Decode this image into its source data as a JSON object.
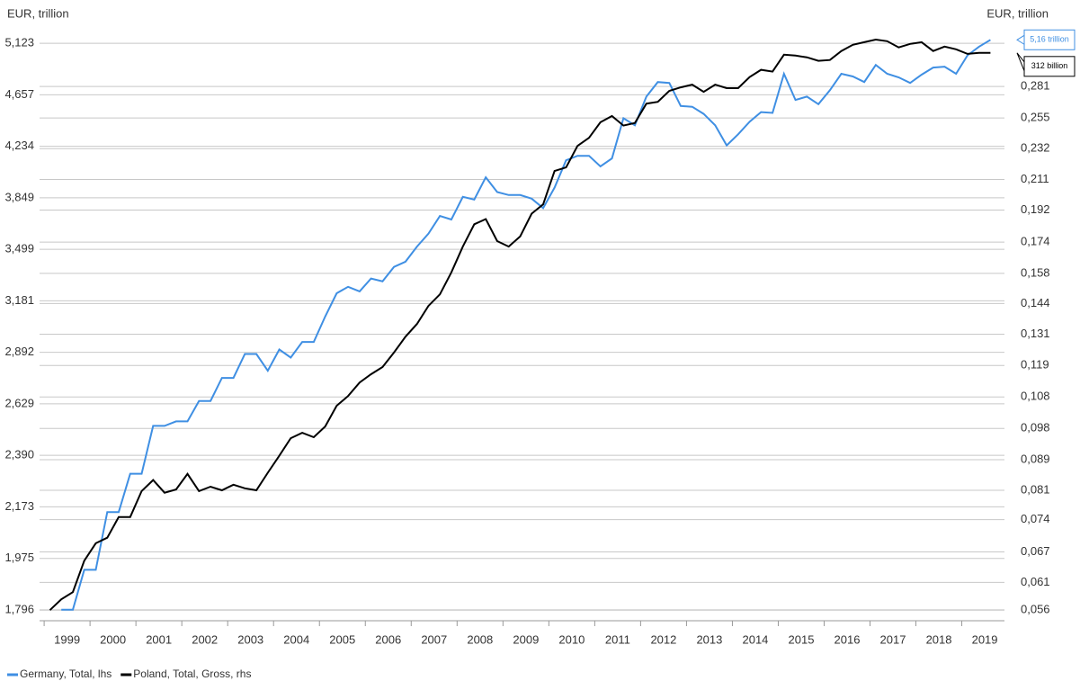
{
  "chart_data": {
    "type": "line",
    "ylabel": "EUR, trillion",
    "y2label": "EUR, trillion",
    "log_scale": true,
    "grid": true,
    "legend": "bottom-left",
    "xlim": [
      1998.9,
      2019.93
    ],
    "xticks": [
      {
        "value": 1999.5,
        "label": "1999"
      },
      {
        "value": 2000.5,
        "label": "2000"
      },
      {
        "value": 2001.5,
        "label": "2001"
      },
      {
        "value": 2002.5,
        "label": "2002"
      },
      {
        "value": 2003.5,
        "label": "2003"
      },
      {
        "value": 2004.5,
        "label": "2004"
      },
      {
        "value": 2005.5,
        "label": "2005"
      },
      {
        "value": 2006.5,
        "label": "2006"
      },
      {
        "value": 2007.5,
        "label": "2007"
      },
      {
        "value": 2008.5,
        "label": "2008"
      },
      {
        "value": 2009.5,
        "label": "2009"
      },
      {
        "value": 2010.5,
        "label": "2010"
      },
      {
        "value": 2011.5,
        "label": "2011"
      },
      {
        "value": 2012.5,
        "label": "2012"
      },
      {
        "value": 2013.5,
        "label": "2013"
      },
      {
        "value": 2014.5,
        "label": "2014"
      },
      {
        "value": 2015.5,
        "label": "2015"
      },
      {
        "value": 2016.5,
        "label": "2016"
      },
      {
        "value": 2017.5,
        "label": "2017"
      },
      {
        "value": 2018.5,
        "label": "2018"
      },
      {
        "value": 2019.5,
        "label": "2019"
      }
    ],
    "ylim": [
      1.76,
      5.28
    ],
    "yticks": [
      {
        "value": 1.796,
        "label": "1,796"
      },
      {
        "value": 1.975,
        "label": "1,975"
      },
      {
        "value": 2.173,
        "label": "2,173"
      },
      {
        "value": 2.39,
        "label": "2,390"
      },
      {
        "value": 2.629,
        "label": "2,629"
      },
      {
        "value": 2.892,
        "label": "2,892"
      },
      {
        "value": 3.181,
        "label": "3,181"
      },
      {
        "value": 3.499,
        "label": "3,499"
      },
      {
        "value": 3.849,
        "label": "3,849"
      },
      {
        "value": 4.234,
        "label": "4,234"
      },
      {
        "value": 4.657,
        "label": "4,657"
      },
      {
        "value": 5.123,
        "label": "5,123"
      }
    ],
    "y2lim": [
      0.0542,
      0.3375
    ],
    "y2ticks": [
      {
        "value": 0.056,
        "label": "0,056"
      },
      {
        "value": 0.061,
        "label": "0,061"
      },
      {
        "value": 0.067,
        "label": "0,067"
      },
      {
        "value": 0.074,
        "label": "0,074"
      },
      {
        "value": 0.081,
        "label": "0,081"
      },
      {
        "value": 0.089,
        "label": "0,089"
      },
      {
        "value": 0.098,
        "label": "0,098"
      },
      {
        "value": 0.108,
        "label": "0,108"
      },
      {
        "value": 0.119,
        "label": "0,119"
      },
      {
        "value": 0.131,
        "label": "0,131"
      },
      {
        "value": 0.144,
        "label": "0,144"
      },
      {
        "value": 0.158,
        "label": "0,158"
      },
      {
        "value": 0.174,
        "label": "0,174"
      },
      {
        "value": 0.192,
        "label": "0,192"
      },
      {
        "value": 0.211,
        "label": "0,211"
      },
      {
        "value": 0.232,
        "label": "0,232"
      },
      {
        "value": 0.255,
        "label": "0,255"
      },
      {
        "value": 0.281,
        "label": "0,281"
      }
    ],
    "x": [
      1999.125,
      1999.375,
      1999.625,
      1999.875,
      2000.125,
      2000.375,
      2000.625,
      2000.875,
      2001.125,
      2001.375,
      2001.625,
      2001.875,
      2002.125,
      2002.375,
      2002.625,
      2002.875,
      2003.125,
      2003.375,
      2003.625,
      2003.875,
      2004.125,
      2004.375,
      2004.625,
      2004.875,
      2005.125,
      2005.375,
      2005.625,
      2005.875,
      2006.125,
      2006.375,
      2006.625,
      2006.875,
      2007.125,
      2007.375,
      2007.625,
      2007.875,
      2008.125,
      2008.375,
      2008.625,
      2008.875,
      2009.125,
      2009.375,
      2009.625,
      2009.875,
      2010.125,
      2010.375,
      2010.625,
      2010.875,
      2011.125,
      2011.375,
      2011.625,
      2011.875,
      2012.125,
      2012.375,
      2012.625,
      2012.875,
      2013.125,
      2013.375,
      2013.625,
      2013.875,
      2014.125,
      2014.375,
      2014.625,
      2014.875,
      2015.125,
      2015.375,
      2015.625,
      2015.875,
      2016.125,
      2016.375,
      2016.625,
      2016.875,
      2017.125,
      2017.375,
      2017.625,
      2017.875,
      2018.125,
      2018.375,
      2018.625,
      2018.875,
      2019.125,
      2019.375,
      2019.625
    ],
    "series": [
      {
        "name": "Germany, Total, lhs",
        "color": "#3f8fe3",
        "axis": "y",
        "values": [
          null,
          1.796,
          1.796,
          1.934,
          1.934,
          2.152,
          2.152,
          2.31,
          2.31,
          2.524,
          2.524,
          2.545,
          2.545,
          2.643,
          2.643,
          2.758,
          2.758,
          2.883,
          2.883,
          2.795,
          2.907,
          2.864,
          2.948,
          2.948,
          3.09,
          3.226,
          3.265,
          3.237,
          3.315,
          3.298,
          3.387,
          3.42,
          3.517,
          3.602,
          3.722,
          3.698,
          3.856,
          3.837,
          3.998,
          3.89,
          3.869,
          3.869,
          3.843,
          3.777,
          3.923,
          4.126,
          4.16,
          4.16,
          4.079,
          4.14,
          4.46,
          4.402,
          4.642,
          4.769,
          4.761,
          4.562,
          4.555,
          4.496,
          4.402,
          4.241,
          4.329,
          4.431,
          4.511,
          4.504,
          4.842,
          4.613,
          4.642,
          4.577,
          4.697,
          4.842,
          4.818,
          4.769,
          4.922,
          4.842,
          4.81,
          4.761,
          4.834,
          4.898,
          4.906,
          4.842,
          5.01,
          5.091,
          5.156
        ]
      },
      {
        "name": "Poland, Total, Gross, rhs",
        "color": "#000000",
        "axis": "y2",
        "values": [
          0.056,
          0.0579,
          0.0592,
          0.0652,
          0.0688,
          0.07,
          0.0746,
          0.0746,
          0.0808,
          0.0836,
          0.0804,
          0.0812,
          0.0852,
          0.0808,
          0.0819,
          0.081,
          0.0824,
          0.0815,
          0.081,
          0.0855,
          0.0901,
          0.0951,
          0.0967,
          0.0954,
          0.0986,
          0.1051,
          0.1083,
          0.1129,
          0.1158,
          0.1184,
          0.1238,
          0.13,
          0.1352,
          0.1429,
          0.1481,
          0.1585,
          0.1716,
          0.1838,
          0.1868,
          0.1745,
          0.1716,
          0.1771,
          0.1899,
          0.1954,
          0.2166,
          0.219,
          0.234,
          0.2399,
          0.2517,
          0.2565,
          0.2491,
          0.2511,
          0.2665,
          0.268,
          0.2772,
          0.2802,
          0.2826,
          0.2764,
          0.2826,
          0.2795,
          0.2795,
          0.2892,
          0.2958,
          0.2942,
          0.3099,
          0.309,
          0.3074,
          0.3041,
          0.3049,
          0.3134,
          0.3195,
          0.3221,
          0.3247,
          0.323,
          0.3169,
          0.3204,
          0.3221,
          0.3134,
          0.3177,
          0.3151,
          0.3107,
          0.3116,
          0.3116
        ]
      }
    ],
    "annotations": [
      "5,16 trillion",
      "312 billion"
    ]
  }
}
